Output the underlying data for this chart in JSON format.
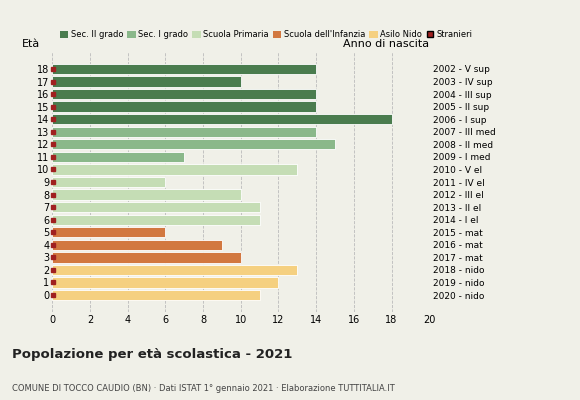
{
  "ages": [
    18,
    17,
    16,
    15,
    14,
    13,
    12,
    11,
    10,
    9,
    8,
    7,
    6,
    5,
    4,
    3,
    2,
    1,
    0
  ],
  "values": [
    14,
    10,
    14,
    14,
    18,
    14,
    15,
    7,
    13,
    6,
    10,
    11,
    11,
    6,
    9,
    10,
    13,
    12,
    11
  ],
  "right_labels": [
    "2002 - V sup",
    "2003 - IV sup",
    "2004 - III sup",
    "2005 - II sup",
    "2006 - I sup",
    "2007 - III med",
    "2008 - II med",
    "2009 - I med",
    "2010 - V el",
    "2011 - IV el",
    "2012 - III el",
    "2013 - II el",
    "2014 - I el",
    "2015 - mat",
    "2016 - mat",
    "2017 - mat",
    "2018 - nido",
    "2019 - nido",
    "2020 - nido"
  ],
  "bar_colors": [
    "#4a7c4e",
    "#4a7c4e",
    "#4a7c4e",
    "#4a7c4e",
    "#4a7c4e",
    "#8ab88a",
    "#8ab88a",
    "#8ab88a",
    "#c5ddb5",
    "#c5ddb5",
    "#c5ddb5",
    "#c5ddb5",
    "#c5ddb5",
    "#d27840",
    "#d27840",
    "#d27840",
    "#f5d080",
    "#f5d080",
    "#f5d080"
  ],
  "stranieri_marker_color": "#a02020",
  "legend_labels": [
    "Sec. II grado",
    "Sec. I grado",
    "Scuola Primaria",
    "Scuola dell'Infanzia",
    "Asilo Nido",
    "Stranieri"
  ],
  "legend_colors": [
    "#4a7c4e",
    "#8ab88a",
    "#c5ddb5",
    "#d27840",
    "#f5d080",
    "#a02020"
  ],
  "title": "Popolazione per età scolastica - 2021",
  "subtitle": "COMUNE DI TOCCO CAUDIO (BN) · Dati ISTAT 1° gennaio 2021 · Elaborazione TUTTITALIA.IT",
  "ylabel_left": "Età",
  "ylabel_right": "Anno di nascita",
  "xlim": [
    0,
    20
  ],
  "xticks": [
    0,
    2,
    4,
    6,
    8,
    10,
    12,
    14,
    16,
    18,
    20
  ],
  "background_color": "#f0f0e8",
  "bar_height": 0.82,
  "grid_color": "#bbbbbb"
}
